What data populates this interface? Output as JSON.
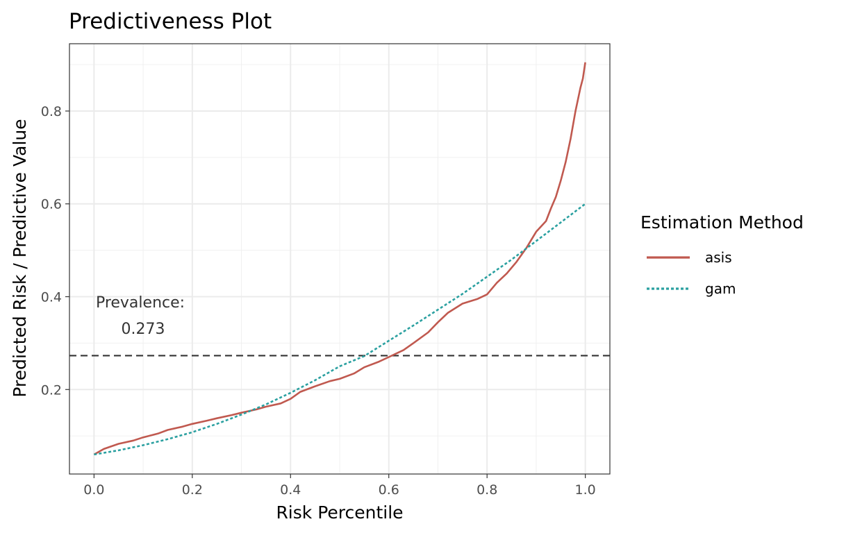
{
  "chart_data": {
    "type": "line",
    "title": "Predictiveness Plot",
    "xlabel": "Risk Percentile",
    "ylabel": "Predicted Risk / Predictive Value",
    "xlim": [
      -0.05,
      1.05
    ],
    "ylim": [
      0.018,
      0.945
    ],
    "x_ticks": [
      0.0,
      0.2,
      0.4,
      0.6,
      0.8,
      1.0
    ],
    "x_tick_labels": [
      "0.0",
      "0.2",
      "0.4",
      "0.6",
      "0.8",
      "1.0"
    ],
    "y_ticks": [
      0.2,
      0.4,
      0.6,
      0.8
    ],
    "y_tick_labels": [
      "0.2",
      "0.4",
      "0.6",
      "0.8"
    ],
    "grid": true,
    "legend": {
      "title": "Estimation Method",
      "position": "right",
      "entries": [
        "asis",
        "gam"
      ]
    },
    "prevalence": {
      "value": 0.273,
      "label_line1": "Prevalence:",
      "label_line2": "0.273",
      "style": "dashed",
      "color": "#333333"
    },
    "series": [
      {
        "name": "asis",
        "color": "#c0594f",
        "style": "solid",
        "x": [
          0.0,
          0.02,
          0.05,
          0.08,
          0.1,
          0.13,
          0.15,
          0.18,
          0.2,
          0.23,
          0.25,
          0.28,
          0.3,
          0.33,
          0.35,
          0.38,
          0.4,
          0.42,
          0.45,
          0.48,
          0.5,
          0.53,
          0.55,
          0.58,
          0.6,
          0.63,
          0.65,
          0.68,
          0.7,
          0.72,
          0.75,
          0.78,
          0.8,
          0.82,
          0.84,
          0.86,
          0.88,
          0.9,
          0.92,
          0.93,
          0.94,
          0.95,
          0.96,
          0.97,
          0.98,
          0.99,
          0.995,
          1.0
        ],
        "y": [
          0.06,
          0.072,
          0.083,
          0.09,
          0.097,
          0.105,
          0.113,
          0.12,
          0.126,
          0.133,
          0.138,
          0.145,
          0.15,
          0.157,
          0.163,
          0.17,
          0.18,
          0.195,
          0.207,
          0.218,
          0.223,
          0.235,
          0.248,
          0.26,
          0.27,
          0.285,
          0.3,
          0.323,
          0.345,
          0.365,
          0.385,
          0.395,
          0.405,
          0.43,
          0.45,
          0.475,
          0.505,
          0.54,
          0.563,
          0.59,
          0.615,
          0.65,
          0.69,
          0.74,
          0.8,
          0.85,
          0.87,
          0.905
        ]
      },
      {
        "name": "gam",
        "color": "#2aa0a0",
        "style": "dotted",
        "x": [
          0.0,
          0.05,
          0.1,
          0.15,
          0.2,
          0.25,
          0.3,
          0.35,
          0.4,
          0.45,
          0.5,
          0.55,
          0.6,
          0.65,
          0.7,
          0.75,
          0.8,
          0.85,
          0.9,
          0.95,
          1.0
        ],
        "y": [
          0.06,
          0.069,
          0.08,
          0.093,
          0.108,
          0.126,
          0.146,
          0.168,
          0.193,
          0.22,
          0.25,
          0.272,
          0.305,
          0.338,
          0.372,
          0.406,
          0.443,
          0.48,
          0.52,
          0.56,
          0.6
        ]
      }
    ]
  }
}
